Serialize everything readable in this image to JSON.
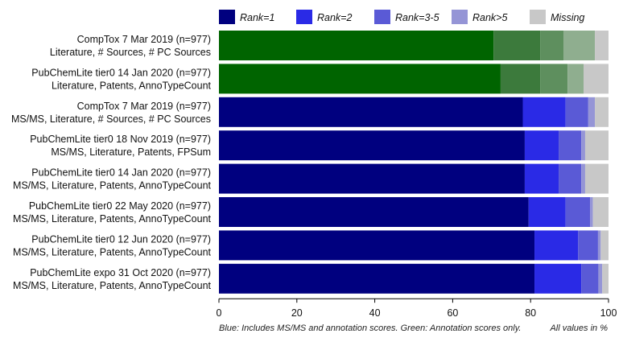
{
  "chart_data": {
    "type": "bar",
    "orientation": "horizontal",
    "stacked": true,
    "title": "",
    "xlabel": "",
    "ylabel": "",
    "xlim": [
      0,
      100
    ],
    "xticks": [
      0,
      20,
      40,
      60,
      80,
      100
    ],
    "grid": false,
    "legend_position": "top",
    "legend": [
      {
        "name": "Rank=1",
        "color": "#00007f"
      },
      {
        "name": "Rank=2",
        "color": "#2a2ae6"
      },
      {
        "name": "Rank=3-5",
        "color": "#5a5ad6"
      },
      {
        "name": "Rank>5",
        "color": "#9595d6"
      },
      {
        "name": "Missing",
        "color": "#c8c8c8"
      }
    ],
    "palettes": {
      "blue": [
        "#00007f",
        "#2a2ae6",
        "#5a5ad6",
        "#9595d6",
        "#c8c8c8"
      ],
      "green": [
        "#006400",
        "#3c7a3c",
        "#5e8f5e",
        "#8fae8f",
        "#c8c8c8"
      ]
    },
    "categories": [
      {
        "line1": "CompTox 7 Mar 2019 (n=977)",
        "line2": "Literature, # Sources, # PC Sources",
        "palette": "green",
        "values": [
          70.5,
          12.0,
          6.0,
          8.0,
          3.5
        ]
      },
      {
        "line1": "PubChemLite tier0 14 Jan 2020 (n=977)",
        "line2": "Literature, Patents, AnnoTypeCount",
        "palette": "green",
        "values": [
          72.3,
          10.2,
          7.0,
          4.1,
          6.4
        ]
      },
      {
        "line1": "CompTox 7 Mar 2019 (n=977)",
        "line2": "MS/MS, Literature, # Sources, # PC Sources",
        "palette": "blue",
        "values": [
          78.0,
          11.0,
          5.8,
          1.7,
          3.5
        ]
      },
      {
        "line1": "PubChemLite tier0 18 Nov 2019 (n=977)",
        "line2": "MS/MS, Literature, Patents, FPSum",
        "palette": "blue",
        "values": [
          78.5,
          8.7,
          5.8,
          1.0,
          6.0
        ]
      },
      {
        "line1": "PubChemLite tier0 14 Jan 2020 (n=977)",
        "line2": "MS/MS, Literature, Patents, AnnoTypeCount",
        "palette": "blue",
        "values": [
          78.5,
          8.7,
          5.8,
          1.0,
          6.0
        ]
      },
      {
        "line1": "PubChemLite tier0 22 May 2020 (n=977)",
        "line2": "MS/MS, Literature, Patents, AnnoTypeCount",
        "palette": "blue",
        "values": [
          79.5,
          9.5,
          6.3,
          0.7,
          4.0
        ]
      },
      {
        "line1": "PubChemLite tier0 12 Jun 2020 (n=977)",
        "line2": "MS/MS, Literature, Patents, AnnoTypeCount",
        "palette": "blue",
        "values": [
          81.0,
          11.2,
          5.1,
          0.7,
          2.0
        ]
      },
      {
        "line1": "PubChemLite expo 31 Oct 2020 (n=977)",
        "line2": "MS/MS, Literature, Patents, AnnoTypeCount",
        "palette": "blue",
        "values": [
          81.0,
          12.0,
          4.4,
          1.0,
          1.6
        ]
      }
    ],
    "footnote_left": "Blue: Includes MS/MS and annotation scores. Green: Annotation scores only.",
    "footnote_right": "All values in %"
  }
}
